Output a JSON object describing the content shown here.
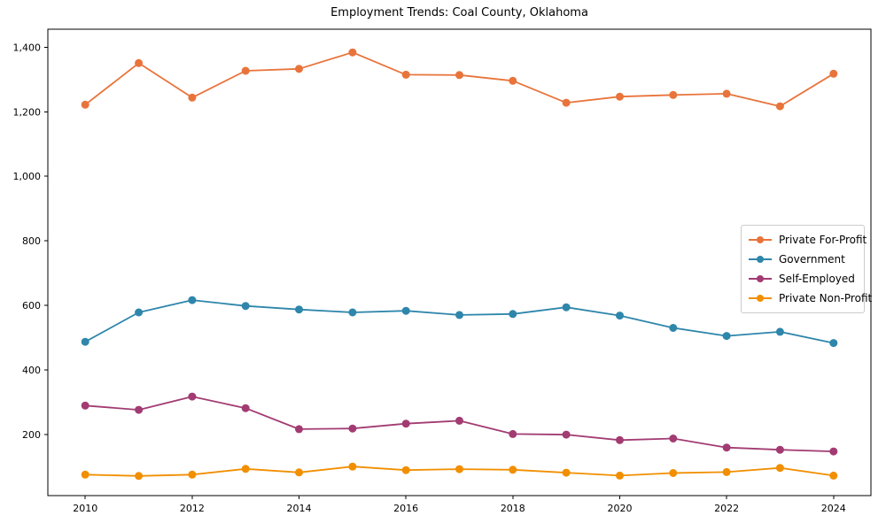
{
  "chart_data": {
    "type": "line",
    "title": "Employment Trends: Coal County, Oklahoma",
    "xlabel": "",
    "ylabel": "",
    "grid": false,
    "legend_position": "center right",
    "xlim": [
      2009.3,
      2024.7
    ],
    "ylim": [
      10,
      1456
    ],
    "x": [
      2010,
      2011,
      2012,
      2013,
      2014,
      2015,
      2016,
      2017,
      2018,
      2019,
      2020,
      2021,
      2022,
      2023,
      2024
    ],
    "x_ticks": [
      2010,
      2012,
      2014,
      2016,
      2018,
      2020,
      2022,
      2024
    ],
    "x_tick_labels": [
      "2010",
      "2012",
      "2014",
      "2016",
      "2018",
      "2020",
      "2022",
      "2024"
    ],
    "y_ticks": [
      200,
      400,
      600,
      800,
      1000,
      1200,
      1400
    ],
    "y_tick_labels": [
      "200",
      "400",
      "600",
      "800",
      "1,000",
      "1,200",
      "1,400"
    ],
    "series": [
      {
        "name": "Private For-Profit",
        "color": "#E8743B",
        "values": [
          1222,
          1351,
          1244,
          1327,
          1333,
          1384,
          1315,
          1314,
          1296,
          1228,
          1247,
          1252,
          1256,
          1217,
          1318
        ]
      },
      {
        "name": "Government",
        "color": "#2E86AB",
        "values": [
          487,
          578,
          616,
          598,
          587,
          578,
          583,
          570,
          573,
          594,
          568,
          530,
          505,
          518,
          483
        ]
      },
      {
        "name": "Self-Employed",
        "color": "#A23B72",
        "values": [
          289,
          276,
          317,
          281,
          216,
          218,
          233,
          242,
          201,
          199,
          182,
          187,
          159,
          152,
          147
        ]
      },
      {
        "name": "Private Non-Profit",
        "color": "#F18F01",
        "values": [
          75,
          71,
          75,
          93,
          82,
          100,
          89,
          92,
          90,
          81,
          72,
          80,
          83,
          96,
          72
        ]
      }
    ]
  }
}
